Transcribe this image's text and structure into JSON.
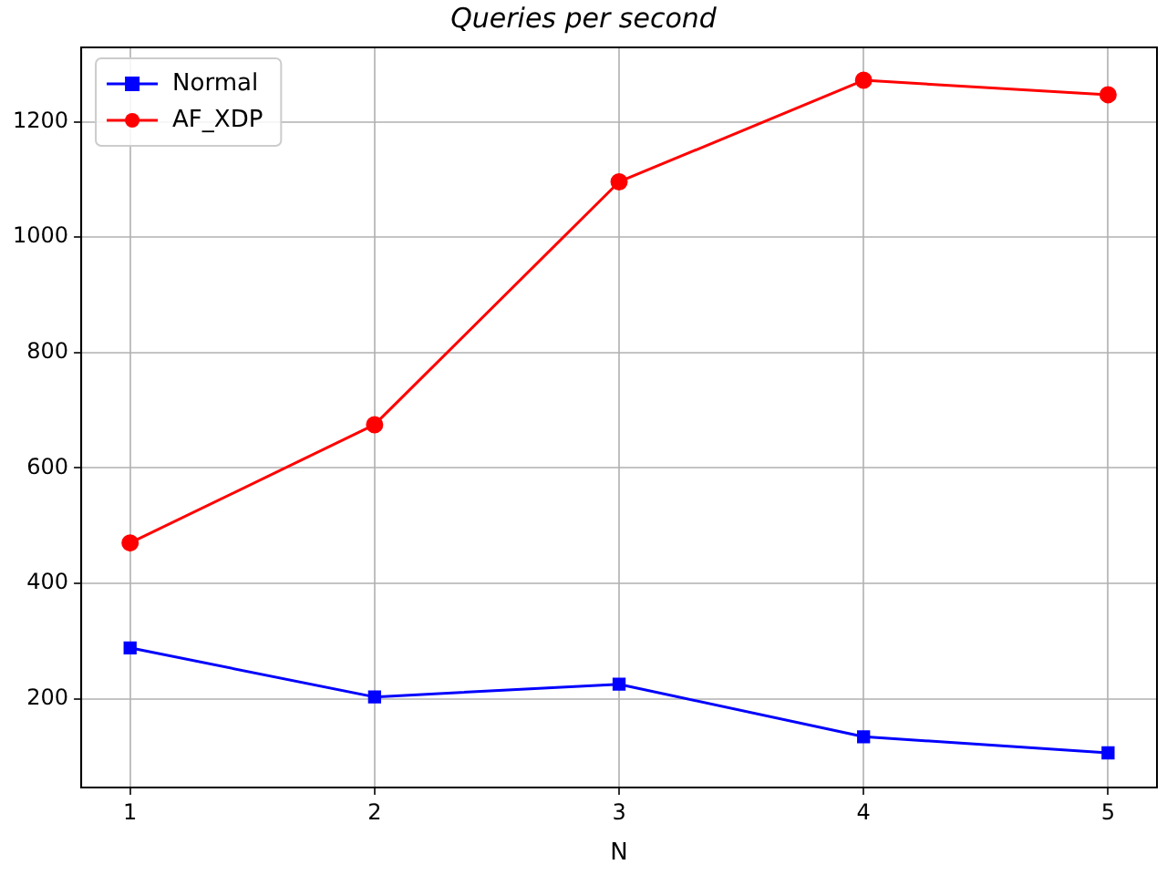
{
  "chart_data": {
    "type": "line",
    "title": "Queries per second",
    "xlabel": "N",
    "x": [
      1,
      2,
      3,
      4,
      5
    ],
    "series": [
      {
        "name": "Normal",
        "color": "#0000ff",
        "marker": "square",
        "values": [
          288,
          203,
          225,
          134,
          106
        ]
      },
      {
        "name": "AF_XDP",
        "color": "#ff0000",
        "marker": "circle",
        "values": [
          470,
          675,
          1096,
          1272,
          1247
        ]
      }
    ],
    "xlim": [
      0.8,
      5.2
    ],
    "xticks": [
      1,
      2,
      3,
      4,
      5
    ],
    "ylim": [
      46,
      1329
    ],
    "yticks": [
      200,
      400,
      600,
      800,
      1000,
      1200
    ],
    "grid": true,
    "legend": "top left",
    "line_style": "solid"
  }
}
